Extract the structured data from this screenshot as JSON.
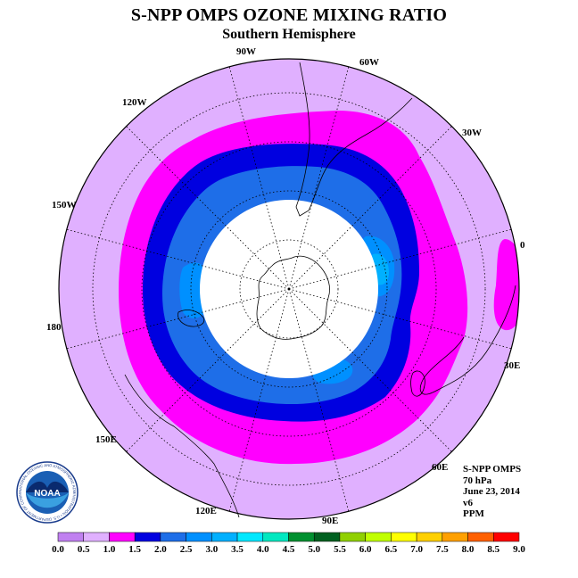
{
  "title": "S-NPP OMPS OZONE MIXING RATIO",
  "subtitle": "Southern Hemisphere",
  "longitude_labels": [
    "90W",
    "60W",
    "30W",
    "0",
    "30E",
    "60E",
    "90E",
    "120E",
    "150E",
    "180",
    "150W",
    "120W"
  ],
  "info": {
    "instrument": "S-NPP OMPS",
    "level": "70 hPa",
    "date": "June 23, 2014",
    "version": "v6",
    "units": "PPM"
  },
  "logo": {
    "text": "NOAA",
    "ring_text": "NATIONAL OCEANIC AND ATMOSPHERIC ADMINISTRATION • U.S. DEPARTMENT OF COMMERCE"
  },
  "colorbar": {
    "ticks": [
      "0.0",
      "0.5",
      "1.0",
      "1.5",
      "2.0",
      "2.5",
      "3.0",
      "3.5",
      "4.0",
      "4.5",
      "5.0",
      "5.5",
      "6.0",
      "6.5",
      "7.0",
      "7.5",
      "8.0",
      "8.5",
      "9.0"
    ],
    "colors": [
      "#c080f0",
      "#e0b0ff",
      "#ff00ff",
      "#0000e0",
      "#1e6ee8",
      "#0090ff",
      "#00b0ff",
      "#00e8ff",
      "#00e8c0",
      "#009030",
      "#006020",
      "#90d000",
      "#c0ff00",
      "#ffff00",
      "#ffd000",
      "#ffa000",
      "#ff6000",
      "#ff0000",
      "#8b4513"
    ]
  },
  "map_colors": {
    "pale_violet": "#e0b0ff",
    "magenta": "#ff00ff",
    "dark_blue": "#0000e0",
    "medium_blue": "#1e6ee8",
    "azure": "#0090ff",
    "light_azure": "#00b0ff",
    "missing": "#ffffff"
  }
}
